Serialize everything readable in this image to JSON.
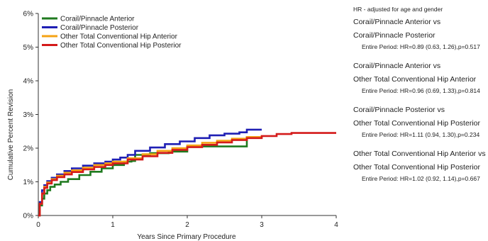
{
  "chart_data": {
    "type": "line",
    "step": true,
    "xlabel": "Years Since Primary Procedure",
    "ylabel": "Cumulative Percent Revision",
    "xlim": [
      0,
      4
    ],
    "ylim": [
      0,
      6
    ],
    "xticks": [
      {
        "value": 0,
        "label": "0"
      },
      {
        "value": 1,
        "label": "1"
      },
      {
        "value": 2,
        "label": "2"
      },
      {
        "value": 3,
        "label": "3"
      },
      {
        "value": 4,
        "label": "4"
      }
    ],
    "yticks": [
      {
        "value": 0,
        "label": "0%"
      },
      {
        "value": 1,
        "label": "1%"
      },
      {
        "value": 2,
        "label": "2%"
      },
      {
        "value": 3,
        "label": "3%"
      },
      {
        "value": 4,
        "label": "4%"
      },
      {
        "value": 5,
        "label": "5%"
      },
      {
        "value": 6,
        "label": "6%"
      }
    ],
    "grid": false,
    "legend_position": "top-left",
    "series": [
      {
        "name": "Corail/Pinnacle Anterior",
        "color": "#1f7a1f",
        "points": [
          [
            0,
            0
          ],
          [
            0.02,
            0.3
          ],
          [
            0.05,
            0.5
          ],
          [
            0.08,
            0.65
          ],
          [
            0.12,
            0.75
          ],
          [
            0.16,
            0.85
          ],
          [
            0.22,
            0.92
          ],
          [
            0.3,
            1.0
          ],
          [
            0.4,
            1.08
          ],
          [
            0.55,
            1.2
          ],
          [
            0.7,
            1.3
          ],
          [
            0.85,
            1.4
          ],
          [
            1.0,
            1.5
          ],
          [
            1.15,
            1.6
          ],
          [
            1.25,
            1.62
          ],
          [
            1.3,
            1.8
          ],
          [
            1.5,
            1.85
          ],
          [
            1.75,
            1.9
          ],
          [
            2.0,
            2.05
          ],
          [
            2.5,
            2.05
          ],
          [
            2.8,
            2.05
          ],
          [
            2.8,
            2.35
          ]
        ]
      },
      {
        "name": "Corail/Pinnacle Posterior",
        "color": "#1f1fb4",
        "points": [
          [
            0,
            0
          ],
          [
            0.02,
            0.4
          ],
          [
            0.05,
            0.75
          ],
          [
            0.08,
            0.9
          ],
          [
            0.12,
            1.02
          ],
          [
            0.18,
            1.12
          ],
          [
            0.25,
            1.22
          ],
          [
            0.35,
            1.32
          ],
          [
            0.45,
            1.4
          ],
          [
            0.6,
            1.48
          ],
          [
            0.75,
            1.55
          ],
          [
            0.9,
            1.6
          ],
          [
            1.0,
            1.66
          ],
          [
            1.1,
            1.72
          ],
          [
            1.2,
            1.8
          ],
          [
            1.3,
            1.92
          ],
          [
            1.5,
            2.02
          ],
          [
            1.7,
            2.12
          ],
          [
            1.9,
            2.2
          ],
          [
            2.1,
            2.3
          ],
          [
            2.3,
            2.38
          ],
          [
            2.5,
            2.43
          ],
          [
            2.7,
            2.47
          ],
          [
            2.8,
            2.55
          ],
          [
            3.0,
            2.55
          ]
        ]
      },
      {
        "name": "Other Total Conventional Hip Anterior",
        "color": "#f5a314",
        "points": [
          [
            0,
            0
          ],
          [
            0.02,
            0.35
          ],
          [
            0.05,
            0.65
          ],
          [
            0.08,
            0.85
          ],
          [
            0.12,
            0.98
          ],
          [
            0.18,
            1.08
          ],
          [
            0.25,
            1.18
          ],
          [
            0.35,
            1.27
          ],
          [
            0.45,
            1.34
          ],
          [
            0.6,
            1.42
          ],
          [
            0.75,
            1.5
          ],
          [
            0.9,
            1.55
          ],
          [
            1.0,
            1.6
          ],
          [
            1.2,
            1.7
          ],
          [
            1.4,
            1.82
          ],
          [
            1.6,
            1.92
          ],
          [
            1.8,
            2.0
          ],
          [
            2.0,
            2.08
          ],
          [
            2.2,
            2.16
          ],
          [
            2.4,
            2.22
          ],
          [
            2.6,
            2.28
          ],
          [
            2.8,
            2.33
          ],
          [
            3.0,
            2.38
          ]
        ]
      },
      {
        "name": "Other Total Conventional Hip Posterior",
        "color": "#d41a1a",
        "points": [
          [
            0,
            0
          ],
          [
            0.02,
            0.35
          ],
          [
            0.05,
            0.65
          ],
          [
            0.08,
            0.82
          ],
          [
            0.12,
            0.95
          ],
          [
            0.18,
            1.05
          ],
          [
            0.25,
            1.14
          ],
          [
            0.35,
            1.22
          ],
          [
            0.45,
            1.29
          ],
          [
            0.6,
            1.37
          ],
          [
            0.75,
            1.44
          ],
          [
            0.9,
            1.5
          ],
          [
            1.0,
            1.55
          ],
          [
            1.2,
            1.66
          ],
          [
            1.4,
            1.76
          ],
          [
            1.6,
            1.86
          ],
          [
            1.8,
            1.95
          ],
          [
            2.0,
            2.03
          ],
          [
            2.2,
            2.1
          ],
          [
            2.4,
            2.17
          ],
          [
            2.6,
            2.24
          ],
          [
            2.8,
            2.3
          ],
          [
            3.0,
            2.36
          ],
          [
            3.2,
            2.42
          ],
          [
            3.4,
            2.45
          ],
          [
            4.0,
            2.45
          ]
        ]
      }
    ]
  },
  "hr_panel": {
    "note": "HR - adjusted for age and gender",
    "comparisons": [
      {
        "line1": "Corail/Pinnacle Anterior vs",
        "line2": "Corail/Pinnacle Posterior",
        "stat": "Entire Period: HR=0.89 (0.63, 1.26),p=0.517"
      },
      {
        "line1": "Corail/Pinnacle Anterior vs",
        "line2": "Other Total Conventional Hip Anterior",
        "stat": "Entire Period: HR=0.96 (0.69, 1.33),p=0.814"
      },
      {
        "line1": "Corail/Pinnacle Posterior vs",
        "line2": "Other Total Conventional Hip Posterior",
        "stat": "Entire Period: HR=1.11 (0.94, 1.30),p=0.234"
      },
      {
        "line1": "Other Total Conventional Hip Anterior vs",
        "line2": "Other Total Conventional Hip Posterior",
        "stat": "Entire Period: HR=1.02 (0.92, 1.14),p=0.667"
      }
    ]
  }
}
